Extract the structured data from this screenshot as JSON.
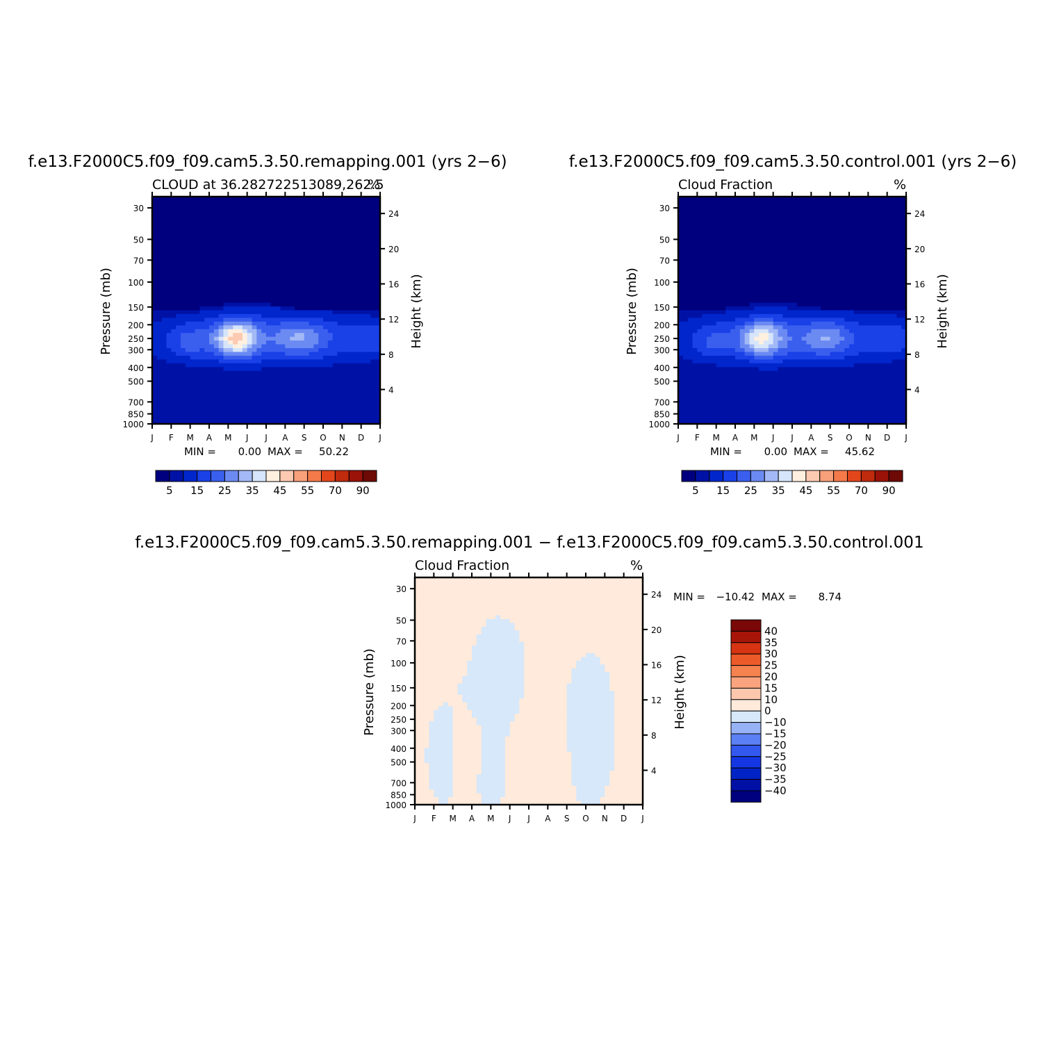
{
  "panels": [
    {
      "title": "f.e13.F2000C5.f09_f09.cam5.3.50.remapping.001  (yrs 2−6)",
      "subtitle_left": "CLOUD at 36.282722513089,262.5",
      "subtitle_right": "%",
      "ylabel_left": "Pressure  (mb)",
      "ylabel_right": "Height  (km)",
      "min_label": "MIN =",
      "min_value": "0.00",
      "max_label": "MAX =",
      "max_value": "50.22",
      "scheme": "abs",
      "peak": 50.22
    },
    {
      "title": "f.e13.F2000C5.f09_f09.cam5.3.50.control.001  (yrs 2−6)",
      "subtitle_left": "Cloud  Fraction",
      "subtitle_right": "%",
      "ylabel_left": "Pressure  (mb)",
      "ylabel_right": "Height  (km)",
      "min_label": "MIN =",
      "min_value": "0.00",
      "max_label": "MAX =",
      "max_value": "45.62",
      "scheme": "abs",
      "peak": 45.62
    },
    {
      "title": "f.e13.F2000C5.f09_f09.cam5.3.50.remapping.001  −  f.e13.F2000C5.f09_f09.cam5.3.50.control.001",
      "subtitle_left": "Cloud  Fraction",
      "subtitle_right": "%",
      "ylabel_left": "Pressure  (mb)",
      "ylabel_right": "Height  (km)",
      "min_label": "MIN =",
      "min_value": "−10.42",
      "max_label": "MAX =",
      "max_value": "8.74",
      "scheme": "diff"
    }
  ],
  "chart_data": {
    "type": "heatmap",
    "months": [
      "J",
      "F",
      "M",
      "A",
      "M",
      "J",
      "J",
      "A",
      "S",
      "O",
      "N",
      "D",
      "J"
    ],
    "pressure_ticks": [
      "30",
      "50",
      "70",
      "100",
      "150",
      "200",
      "250",
      "300",
      "400",
      "500",
      "700",
      "850",
      "1000"
    ],
    "pressure_values": [
      30,
      50,
      70,
      100,
      150,
      200,
      250,
      300,
      400,
      500,
      700,
      850,
      1000
    ],
    "height_ticks": [
      "24",
      "20",
      "16",
      "12",
      "8",
      "4"
    ],
    "height_values": [
      24,
      20,
      16,
      12,
      8,
      4
    ],
    "abs_levels": [
      5,
      10,
      15,
      20,
      25,
      30,
      35,
      40,
      45,
      50,
      55,
      60,
      70,
      80,
      90
    ],
    "abs_label_ticks": [
      "5",
      "15",
      "25",
      "35",
      "45",
      "55",
      "70",
      "90"
    ],
    "abs_colors": [
      "#00007f",
      "#0012a6",
      "#0026cc",
      "#1a40e8",
      "#3a5fee",
      "#6b8af2",
      "#a3b9f6",
      "#d6e5fa",
      "#fff0e0",
      "#fcc9b1",
      "#f8a079",
      "#f47a4a",
      "#e4461c",
      "#c02a0d",
      "#9a1208",
      "#6e0a06"
    ],
    "diff_levels": [
      -40,
      -35,
      -30,
      -25,
      -20,
      -15,
      -10,
      0,
      10,
      15,
      20,
      25,
      30,
      35,
      40
    ],
    "diff_labels": [
      "40",
      "35",
      "30",
      "25",
      "20",
      "15",
      "10",
      "0",
      "−10",
      "−15",
      "−20",
      "−25",
      "−30",
      "−35",
      "−40"
    ],
    "diff_colors": [
      "#00007f",
      "#0010a4",
      "#0023c6",
      "#1437e3",
      "#3258ee",
      "#5b80f3",
      "#97b2f6",
      "#d6e8fa",
      "#ffeadb",
      "#fcc7ad",
      "#f9a47f",
      "#f5824f",
      "#ed5a2a",
      "#d63413",
      "#a71509",
      "#7a0808"
    ]
  }
}
